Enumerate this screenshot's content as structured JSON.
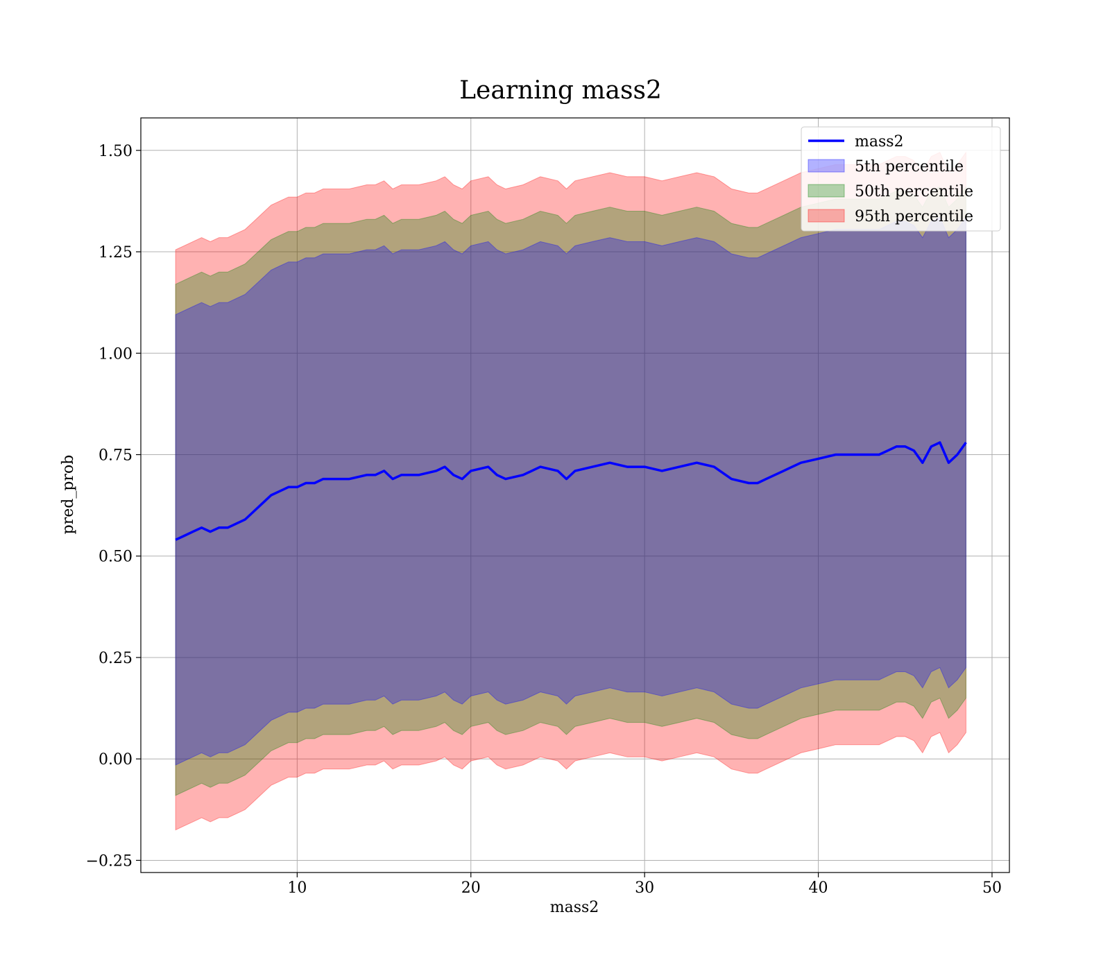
{
  "chart_data": {
    "type": "line",
    "title": "Learning mass2",
    "xlabel": "mass2",
    "ylabel": "pred_prob",
    "xlim": [
      1,
      51
    ],
    "ylim": [
      -0.28,
      1.58
    ],
    "xticks": [
      10,
      20,
      30,
      40,
      50
    ],
    "xtick_labels": [
      "10",
      "20",
      "30",
      "40",
      "50"
    ],
    "yticks": [
      -0.25,
      0.0,
      0.25,
      0.5,
      0.75,
      1.0,
      1.25,
      1.5
    ],
    "ytick_labels": [
      "−0.25",
      "0.00",
      "0.25",
      "0.50",
      "0.75",
      "1.00",
      "1.25",
      "1.50"
    ],
    "grid": true,
    "legend_position": "top-right",
    "series": [
      {
        "name": "mass2",
        "kind": "line",
        "color": "#0000ff"
      },
      {
        "name": "5th percentile",
        "kind": "band",
        "color": "#0000ff",
        "half_width": 0.555
      },
      {
        "name": "50th percentile",
        "kind": "band",
        "color": "#008000",
        "half_width": 0.63
      },
      {
        "name": "95th percentile",
        "kind": "band",
        "color": "#ff0000",
        "half_width": 0.715
      }
    ],
    "x": [
      3.0,
      3.5,
      4.0,
      4.5,
      5.0,
      5.5,
      6.0,
      6.5,
      7.0,
      7.5,
      8.0,
      8.5,
      9.0,
      9.5,
      10.0,
      10.5,
      11.0,
      11.5,
      12.0,
      13.0,
      14.0,
      14.5,
      15.0,
      15.5,
      16.0,
      17.0,
      18.0,
      18.5,
      19.0,
      19.5,
      20.0,
      21.0,
      21.5,
      22.0,
      23.0,
      24.0,
      25.0,
      25.5,
      26.0,
      27.0,
      28.0,
      29.0,
      30.0,
      31.0,
      32.0,
      33.0,
      34.0,
      35.0,
      36.0,
      36.5,
      37.0,
      38.0,
      39.0,
      40.0,
      41.0,
      42.0,
      43.0,
      43.5,
      44.0,
      44.5,
      45.0,
      45.5,
      46.0,
      46.5,
      47.0,
      47.5,
      48.0,
      48.5
    ],
    "y": [
      0.54,
      0.55,
      0.56,
      0.57,
      0.56,
      0.57,
      0.57,
      0.58,
      0.59,
      0.61,
      0.63,
      0.65,
      0.66,
      0.67,
      0.67,
      0.68,
      0.68,
      0.69,
      0.69,
      0.69,
      0.7,
      0.7,
      0.71,
      0.69,
      0.7,
      0.7,
      0.71,
      0.72,
      0.7,
      0.69,
      0.71,
      0.72,
      0.7,
      0.69,
      0.7,
      0.72,
      0.71,
      0.69,
      0.71,
      0.72,
      0.73,
      0.72,
      0.72,
      0.71,
      0.72,
      0.73,
      0.72,
      0.69,
      0.68,
      0.68,
      0.69,
      0.71,
      0.73,
      0.74,
      0.75,
      0.75,
      0.75,
      0.75,
      0.76,
      0.77,
      0.77,
      0.76,
      0.73,
      0.77,
      0.78,
      0.73,
      0.75,
      0.78
    ]
  }
}
